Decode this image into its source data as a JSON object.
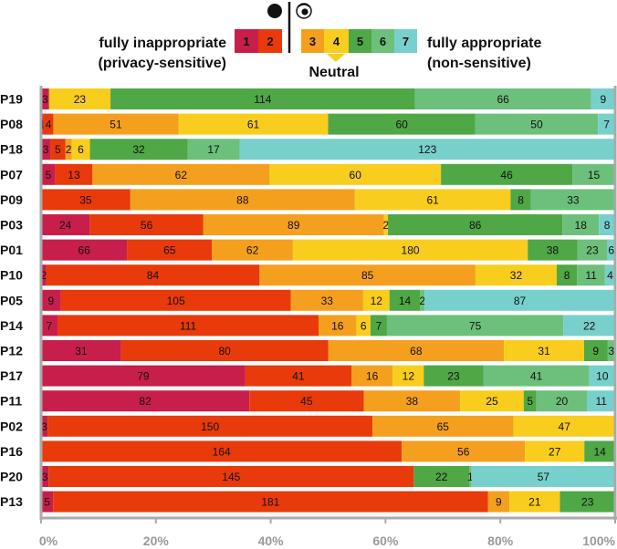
{
  "chart_data": {
    "type": "bar",
    "orientation": "horizontal",
    "stacked": true,
    "normalized": true,
    "xlim": [
      0,
      100
    ],
    "x_ticks": [
      "0%",
      "20%",
      "40%",
      "60%",
      "80%",
      "100%"
    ],
    "categories": [
      "P19",
      "P08",
      "P18",
      "P07",
      "P09",
      "P03",
      "P01",
      "P10",
      "P05",
      "P14",
      "P12",
      "P17",
      "P11",
      "P02",
      "P16",
      "P20",
      "P13"
    ],
    "series": [
      {
        "name": "1",
        "color": "#c81e4b",
        "values": [
          3,
          1,
          3,
          5,
          0,
          24,
          66,
          2,
          9,
          7,
          31,
          79,
          82,
          3,
          0,
          3,
          5
        ]
      },
      {
        "name": "2",
        "color": "#e83a0a",
        "values": [
          0,
          4,
          5,
          13,
          35,
          56,
          65,
          84,
          105,
          111,
          80,
          41,
          45,
          150,
          164,
          145,
          181
        ]
      },
      {
        "name": "3",
        "color": "#f4a01e",
        "values": [
          0,
          51,
          2,
          62,
          88,
          89,
          62,
          85,
          33,
          16,
          68,
          16,
          38,
          65,
          56,
          0,
          9
        ]
      },
      {
        "name": "4",
        "color": "#f9cd1d",
        "values": [
          23,
          61,
          6,
          60,
          61,
          2,
          180,
          32,
          12,
          6,
          31,
          12,
          25,
          47,
          27,
          0,
          21
        ]
      },
      {
        "name": "5",
        "color": "#4fa745",
        "values": [
          114,
          60,
          32,
          46,
          8,
          86,
          38,
          8,
          14,
          7,
          9,
          23,
          5,
          0,
          14,
          22,
          23
        ]
      },
      {
        "name": "6",
        "color": "#6cc07b",
        "values": [
          66,
          50,
          17,
          15,
          33,
          18,
          23,
          11,
          2,
          75,
          3,
          41,
          20,
          0,
          0,
          1,
          0
        ]
      },
      {
        "name": "7",
        "color": "#78d0cc",
        "values": [
          9,
          7,
          123,
          0,
          0,
          8,
          6,
          4,
          87,
          22,
          0,
          10,
          11,
          0,
          0,
          57,
          0
        ]
      }
    ],
    "legend": {
      "left_label_1": "fully inappropriate",
      "left_label_2": "(privacy-sensitive)",
      "right_label_1": "fully appropriate",
      "right_label_2": "(non-sensitive)",
      "neutral_label": "Neutral",
      "left_icon": "filled-circle-icon",
      "right_icon": "eye-icon"
    }
  }
}
